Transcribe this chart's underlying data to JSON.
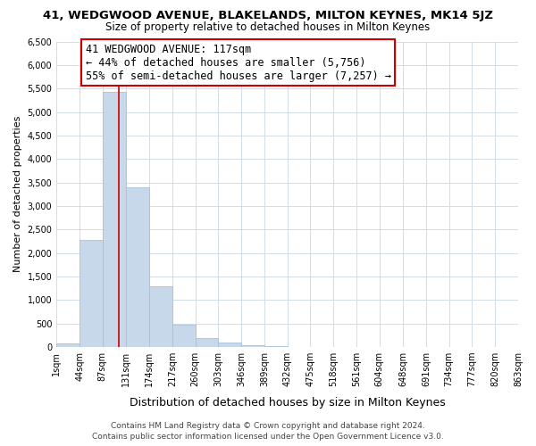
{
  "title": "41, WEDGWOOD AVENUE, BLAKELANDS, MILTON KEYNES, MK14 5JZ",
  "subtitle": "Size of property relative to detached houses in Milton Keynes",
  "xlabel": "Distribution of detached houses by size in Milton Keynes",
  "ylabel": "Number of detached properties",
  "bar_color": "#c8d8eb",
  "bar_edge_color": "#a8c0d8",
  "vline_x": 117,
  "vline_color": "#cc0000",
  "annotation_line1": "41 WEDGWOOD AVENUE: 117sqm",
  "annotation_line2": "← 44% of detached houses are smaller (5,756)",
  "annotation_line3": "55% of semi-detached houses are larger (7,257) →",
  "footer_line1": "Contains HM Land Registry data © Crown copyright and database right 2024.",
  "footer_line2": "Contains public sector information licensed under the Open Government Licence v3.0.",
  "bin_edges": [
    1,
    44,
    87,
    131,
    174,
    217,
    260,
    303,
    346,
    389,
    432,
    475,
    518,
    561,
    604,
    648,
    691,
    734,
    777,
    820,
    863
  ],
  "bar_heights": [
    75,
    2270,
    5430,
    3390,
    1290,
    480,
    195,
    90,
    45,
    15,
    8,
    5,
    2,
    1,
    0,
    0,
    0,
    0,
    0,
    0
  ],
  "ylim": [
    0,
    6500
  ],
  "yticks": [
    0,
    500,
    1000,
    1500,
    2000,
    2500,
    3000,
    3500,
    4000,
    4500,
    5000,
    5500,
    6000,
    6500
  ],
  "background_color": "#ffffff",
  "grid_color": "#d0dce8",
  "title_fontsize": 9.5,
  "subtitle_fontsize": 8.5,
  "xlabel_fontsize": 9,
  "ylabel_fontsize": 8,
  "tick_fontsize": 7,
  "annotation_fontsize": 8.5,
  "footer_fontsize": 6.5
}
